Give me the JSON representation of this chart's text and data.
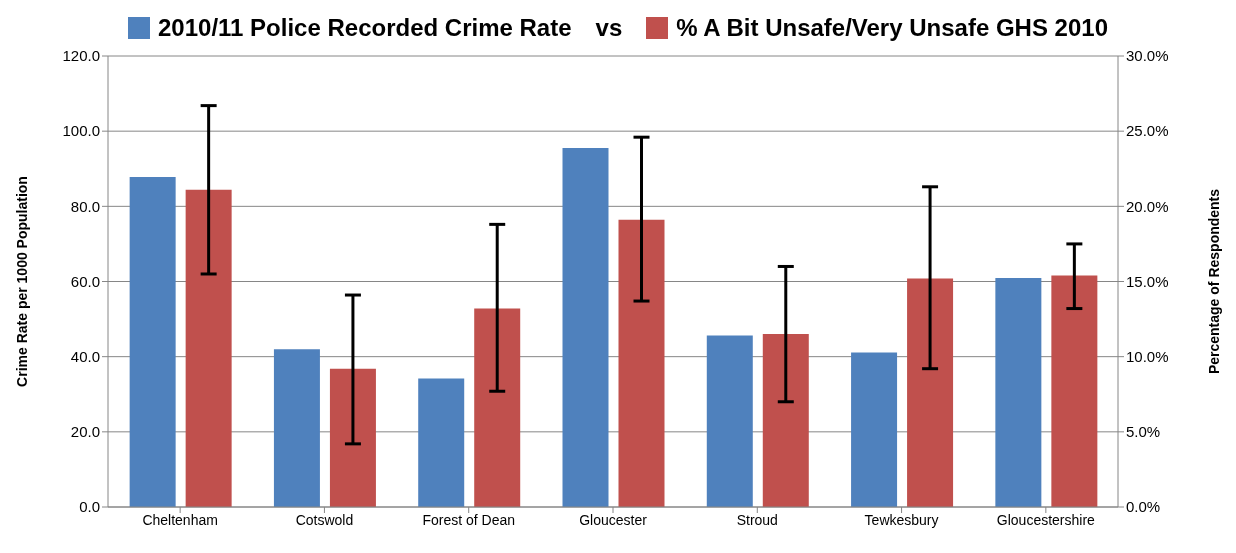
{
  "chart_data": {
    "type": "bar",
    "categories": [
      "Cheltenham",
      "Cotswold",
      "Forest of Dean",
      "Gloucester",
      "Stroud",
      "Tewkesbury",
      "Gloucestershire"
    ],
    "series": [
      {
        "name": "2010/11 Police Recorded Crime Rate",
        "color": "#4f81bd",
        "values": [
          87.8,
          42.0,
          34.2,
          95.5,
          45.6,
          41.1,
          60.9
        ]
      },
      {
        "name": "% A Bit Unsafe/Very Unsafe GHS 2010",
        "color": "#c0504d",
        "axis": "y2",
        "values": [
          21.1,
          9.2,
          13.2,
          19.1,
          11.5,
          15.2,
          15.4
        ],
        "errors": [
          [
            15.5,
            26.7
          ],
          [
            4.2,
            14.1
          ],
          [
            7.7,
            18.8
          ],
          [
            13.7,
            24.6
          ],
          [
            7.0,
            16.0
          ],
          [
            9.2,
            21.3
          ],
          [
            13.2,
            17.5
          ]
        ]
      }
    ],
    "ylabel": "Crime Rate per 1000 Population",
    "y2label": "Percentage of Respondents",
    "ylim": [
      0,
      120
    ],
    "yticks": [
      {
        "value": 0,
        "label": "0.0"
      },
      {
        "value": 20,
        "label": "20.0"
      },
      {
        "value": 40,
        "label": "40.0"
      },
      {
        "value": 60,
        "label": "60.0"
      },
      {
        "value": 80,
        "label": "80.0"
      },
      {
        "value": 100,
        "label": "100.0"
      },
      {
        "value": 120,
        "label": "120.0"
      }
    ],
    "y2lim": [
      0,
      30
    ],
    "y2ticks": [
      {
        "value": 0,
        "label": "0.0%"
      },
      {
        "value": 5,
        "label": "5.0%"
      },
      {
        "value": 10,
        "label": "10.0%"
      },
      {
        "value": 15,
        "label": "15.0%"
      },
      {
        "value": 20,
        "label": "20.0%"
      },
      {
        "value": 25,
        "label": "25.0%"
      },
      {
        "value": 30,
        "label": "30.0%"
      }
    ],
    "annotations": [
      "vs"
    ],
    "grid": "y",
    "legend": "top"
  }
}
